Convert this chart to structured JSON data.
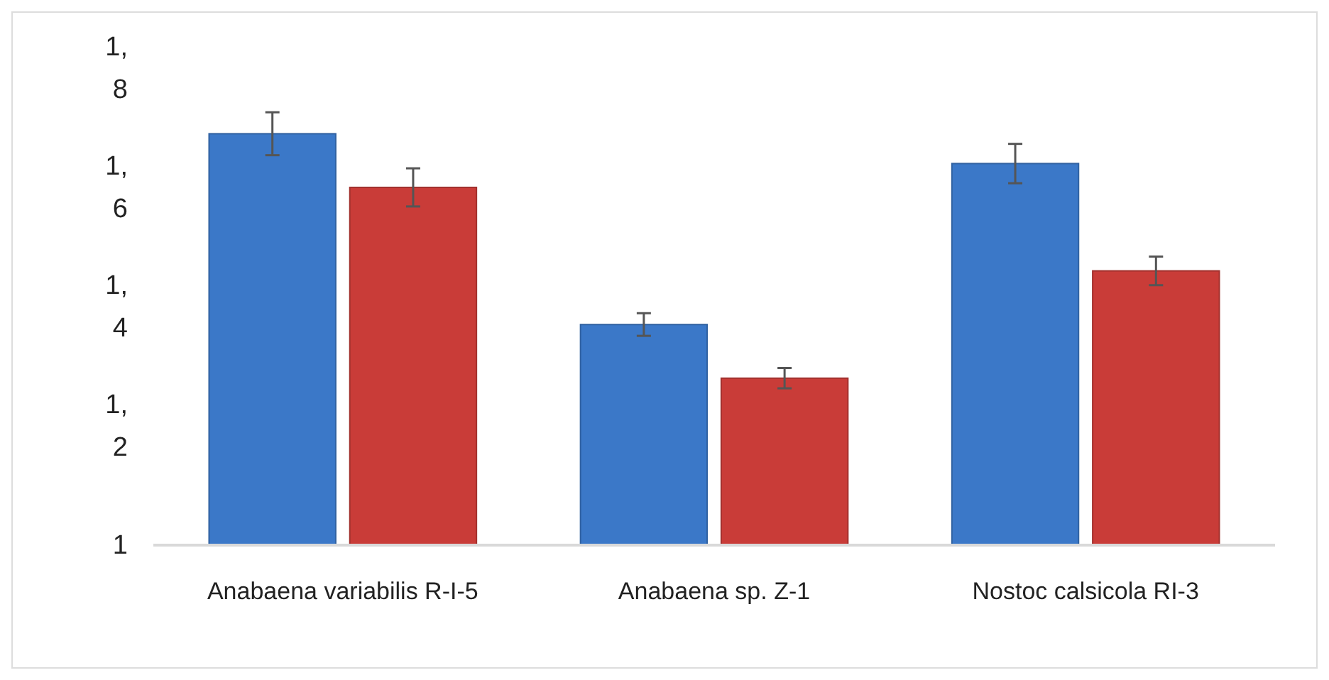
{
  "chart_data": {
    "type": "bar",
    "categories": [
      "Anabaena variabilis R-I-5",
      "Anabaena sp. Z-1",
      "Nostoc calsicola RI-3"
    ],
    "series": [
      {
        "color": "#3b78c8",
        "values": [
          1.69,
          1.37,
          1.64
        ],
        "errors": [
          0.036,
          0.019,
          0.033
        ]
      },
      {
        "color": "#c93c38",
        "values": [
          1.6,
          1.28,
          1.46
        ],
        "errors": [
          0.032,
          0.017,
          0.024
        ]
      }
    ],
    "ylim": [
      1,
      1.8
    ],
    "yticks": [
      {
        "value": 1,
        "label": "1"
      },
      {
        "value": 1.2,
        "label": "1,2"
      },
      {
        "value": 1.4,
        "label": "1,4"
      },
      {
        "value": 1.6,
        "label": "1,6"
      },
      {
        "value": 1.8,
        "label": "1,8"
      }
    ],
    "grid": false
  }
}
